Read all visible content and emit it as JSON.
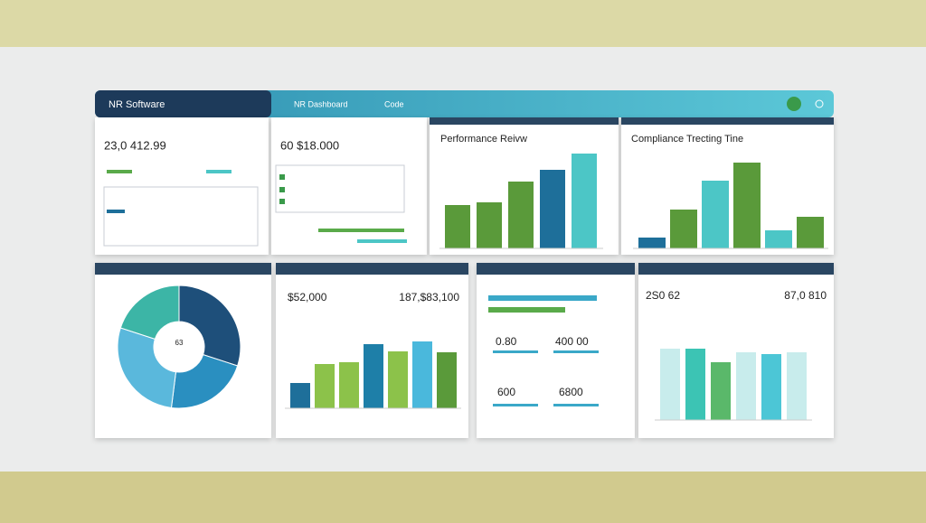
{
  "nav": {
    "brand": "NR Software",
    "tabs": [
      "NR Dashboard",
      "Code"
    ]
  },
  "summary_a": {
    "value": "23,0 412.99"
  },
  "summary_b": {
    "value": "60 $18.000"
  },
  "performance": {
    "title": "Performance Reivw",
    "values": [
      48,
      51,
      74,
      87,
      105
    ],
    "colors": [
      "#5a9a3a",
      "#5a9a3a",
      "#5a9a3a",
      "#1e6f9a",
      "#4cc6c6"
    ]
  },
  "compliance": {
    "title": "Compliance Trecting Tine",
    "values": [
      12,
      43,
      75,
      95,
      20,
      35
    ],
    "colors": [
      "#1e6f9a",
      "#5a9a3a",
      "#4cc6c6",
      "#5a9a3a",
      "#4cc6c6",
      "#5a9a3a"
    ]
  },
  "donut": {
    "label": "63",
    "values": [
      30,
      22,
      28,
      20
    ],
    "colors": [
      "#1e4f7a",
      "#2a8fc0",
      "#5ab8dc",
      "#3cb5a6"
    ]
  },
  "revenue": {
    "values_text": [
      "$52,000",
      "187,$83,100"
    ],
    "bars": [
      28,
      49,
      51,
      71,
      63,
      74,
      62
    ],
    "colors": [
      "#1e6f9a",
      "#8cc24a",
      "#8cc24a",
      "#1e7fa8",
      "#8cc24a",
      "#4ab8dc",
      "#5a9a3a"
    ]
  },
  "metrics": {
    "items": [
      "0.80",
      "400 00",
      "600",
      "6800"
    ]
  },
  "tracking": {
    "values_text": [
      "2S0 62",
      "87,0 810"
    ],
    "bars": [
      79,
      79,
      64,
      75,
      73,
      75
    ],
    "colors": [
      "#c8ecec",
      "#3cc4b4",
      "#5ab86a",
      "#c8ecec",
      "#4cc6d6",
      "#c8ecec"
    ]
  }
}
